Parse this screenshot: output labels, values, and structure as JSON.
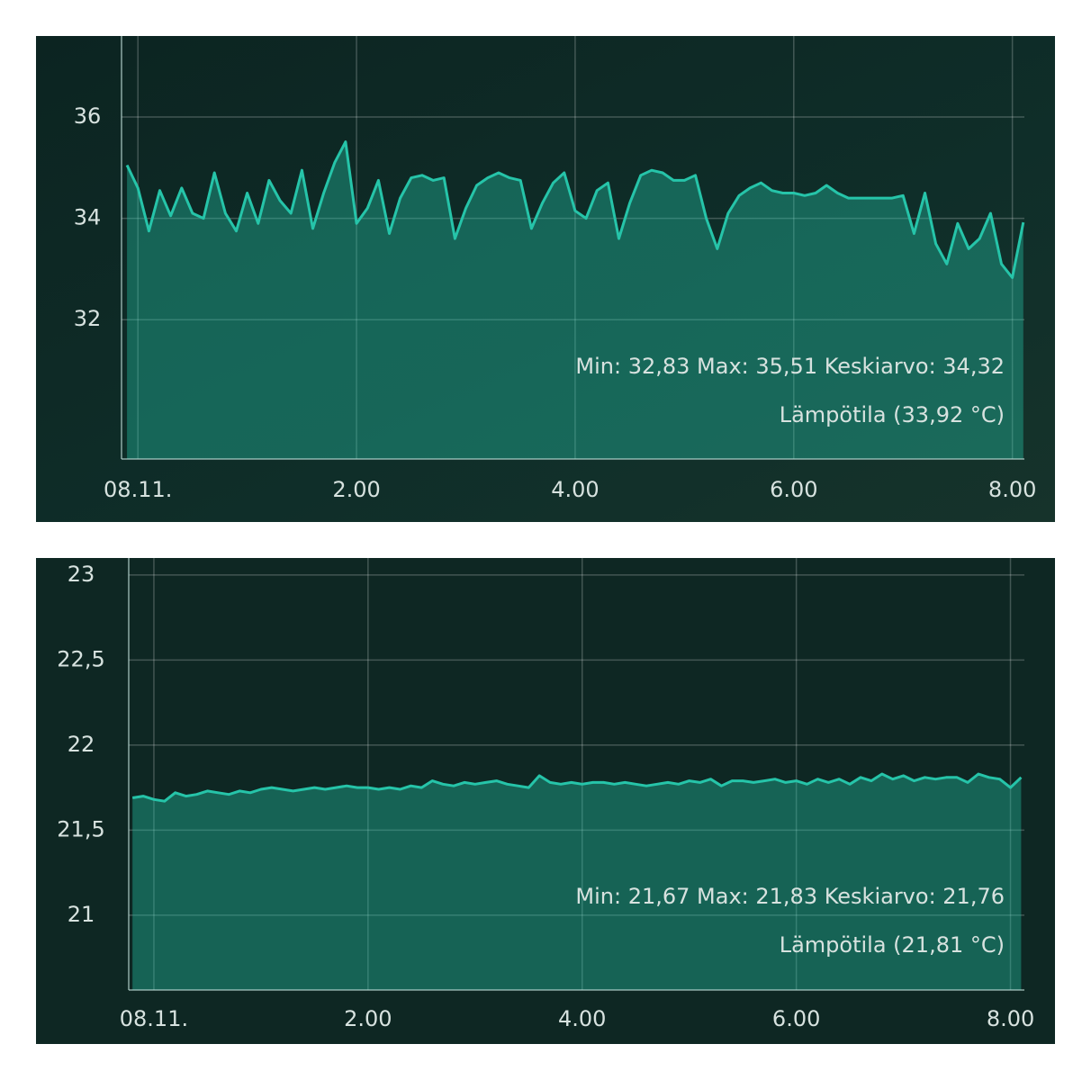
{
  "chart_data": [
    {
      "type": "line",
      "x": [
        -0.1,
        0,
        0.1,
        0.2,
        0.3,
        0.4,
        0.5,
        0.6,
        0.7,
        0.8,
        0.9,
        1,
        1.1,
        1.2,
        1.3,
        1.4,
        1.5,
        1.6,
        1.7,
        1.8,
        1.9,
        2,
        2.1,
        2.2,
        2.3,
        2.4,
        2.5,
        2.6,
        2.7,
        2.8,
        2.9,
        3,
        3.1,
        3.2,
        3.3,
        3.4,
        3.5,
        3.6,
        3.7,
        3.8,
        3.9,
        4,
        4.1,
        4.2,
        4.3,
        4.4,
        4.5,
        4.6,
        4.7,
        4.8,
        4.9,
        5,
        5.1,
        5.2,
        5.3,
        5.4,
        5.5,
        5.6,
        5.7,
        5.8,
        5.9,
        6,
        6.1,
        6.2,
        6.3,
        6.4,
        6.5,
        6.6,
        6.7,
        6.8,
        6.9,
        7,
        7.1,
        7.2,
        7.3,
        7.4,
        7.5,
        7.6,
        7.7,
        7.8,
        7.9,
        8,
        8.1
      ],
      "series": [
        {
          "name": "Lämpötila (33,92 °C)",
          "color": "#26c4a9",
          "values": [
            35.05,
            34.6,
            33.75,
            34.55,
            34.05,
            34.6,
            34.1,
            34.0,
            34.9,
            34.1,
            33.75,
            34.5,
            33.9,
            34.75,
            34.35,
            34.1,
            34.95,
            33.8,
            34.5,
            35.1,
            35.51,
            33.9,
            34.2,
            34.75,
            33.7,
            34.4,
            34.8,
            34.85,
            34.75,
            34.8,
            33.6,
            34.2,
            34.65,
            34.8,
            34.9,
            34.8,
            34.75,
            33.8,
            34.3,
            34.7,
            34.9,
            34.15,
            34.0,
            34.55,
            34.7,
            33.6,
            34.3,
            34.85,
            34.95,
            34.9,
            34.75,
            34.75,
            34.85,
            34.0,
            33.4,
            34.1,
            34.45,
            34.6,
            34.7,
            34.55,
            34.5,
            34.5,
            34.45,
            34.5,
            34.65,
            34.5,
            34.4,
            34.4,
            34.4,
            34.4,
            34.4,
            34.45,
            33.7,
            34.5,
            33.5,
            33.1,
            33.9,
            33.4,
            33.6,
            34.1,
            33.1,
            32.83,
            33.92
          ]
        }
      ],
      "annotation": "Min: 32,83 Max: 35,51 Keskiarvo: 34,32",
      "xlim": [
        -0.15,
        8.11
      ],
      "xticks": [
        {
          "value": 0,
          "label": "08.11."
        },
        {
          "value": 2,
          "label": "2.00"
        },
        {
          "value": 4,
          "label": "4.00"
        },
        {
          "value": 6,
          "label": "6.00"
        },
        {
          "value": 8,
          "label": "8.00"
        }
      ],
      "ylim": [
        29.25,
        37.6
      ],
      "yticks": [
        32,
        34,
        36
      ],
      "grid": true
    },
    {
      "type": "line",
      "x": [
        -0.2,
        -0.1,
        0,
        0.1,
        0.2,
        0.3,
        0.4,
        0.5,
        0.6,
        0.7,
        0.8,
        0.9,
        1,
        1.1,
        1.2,
        1.3,
        1.4,
        1.5,
        1.6,
        1.7,
        1.8,
        1.9,
        2,
        2.1,
        2.2,
        2.3,
        2.4,
        2.5,
        2.6,
        2.7,
        2.8,
        2.9,
        3,
        3.1,
        3.2,
        3.3,
        3.4,
        3.5,
        3.6,
        3.7,
        3.8,
        3.9,
        4,
        4.1,
        4.2,
        4.3,
        4.4,
        4.5,
        4.6,
        4.7,
        4.8,
        4.9,
        5,
        5.1,
        5.2,
        5.3,
        5.4,
        5.5,
        5.6,
        5.7,
        5.8,
        5.9,
        6,
        6.1,
        6.2,
        6.3,
        6.4,
        6.5,
        6.6,
        6.7,
        6.8,
        6.9,
        7,
        7.1,
        7.2,
        7.3,
        7.4,
        7.5,
        7.6,
        7.7,
        7.8,
        7.9,
        8,
        8.1
      ],
      "series": [
        {
          "name": "Lämpötila (21,81 °C)",
          "color": "#26c4a9",
          "values": [
            21.69,
            21.7,
            21.68,
            21.67,
            21.72,
            21.7,
            21.71,
            21.73,
            21.72,
            21.71,
            21.73,
            21.72,
            21.74,
            21.75,
            21.74,
            21.73,
            21.74,
            21.75,
            21.74,
            21.75,
            21.76,
            21.75,
            21.75,
            21.74,
            21.75,
            21.74,
            21.76,
            21.75,
            21.79,
            21.77,
            21.76,
            21.78,
            21.77,
            21.78,
            21.79,
            21.77,
            21.76,
            21.75,
            21.82,
            21.78,
            21.77,
            21.78,
            21.77,
            21.78,
            21.78,
            21.77,
            21.78,
            21.77,
            21.76,
            21.77,
            21.78,
            21.77,
            21.79,
            21.78,
            21.8,
            21.76,
            21.79,
            21.79,
            21.78,
            21.79,
            21.8,
            21.78,
            21.79,
            21.77,
            21.8,
            21.78,
            21.8,
            21.77,
            21.81,
            21.79,
            21.83,
            21.8,
            21.82,
            21.79,
            21.81,
            21.8,
            21.81,
            21.81,
            21.78,
            21.83,
            21.81,
            21.8,
            21.75,
            21.81
          ]
        }
      ],
      "annotation": "Min: 21,67 Max: 21,83 Keskiarvo: 21,76",
      "xlim": [
        -0.235,
        8.13
      ],
      "xticks": [
        {
          "value": 0,
          "label": "08.11."
        },
        {
          "value": 2,
          "label": "2.00"
        },
        {
          "value": 4,
          "label": "4.00"
        },
        {
          "value": 6,
          "label": "6.00"
        },
        {
          "value": 8,
          "label": "8.00"
        }
      ],
      "ylim": [
        20.56,
        23.1
      ],
      "yticks": [
        21,
        {
          "value": 21.5,
          "label": "21,5"
        },
        22,
        {
          "value": 22.5,
          "label": "22,5"
        },
        23
      ],
      "grid": true
    }
  ]
}
